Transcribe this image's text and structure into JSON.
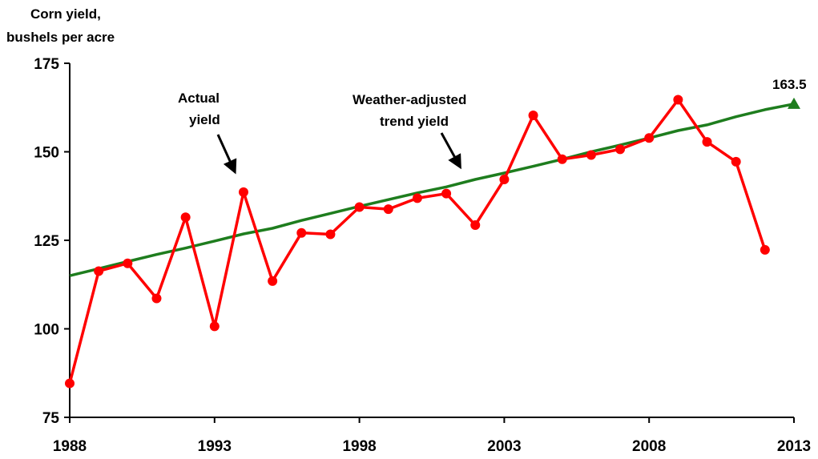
{
  "chart_data": {
    "type": "line",
    "ylabel_lines": [
      "Corn yield,",
      "bushels per acre"
    ],
    "xlabel": "",
    "ylim": [
      75,
      175
    ],
    "xlim": [
      1988,
      2013
    ],
    "yticks": [
      75,
      100,
      125,
      150,
      175
    ],
    "xticks": [
      1988,
      1993,
      1998,
      2003,
      2008,
      2013
    ],
    "grid": false,
    "series": [
      {
        "key": "actual",
        "color": "#ff0000",
        "marker": "circle",
        "x": [
          1988,
          1989,
          1990,
          1991,
          1992,
          1993,
          1994,
          1995,
          1996,
          1997,
          1998,
          1999,
          2000,
          2001,
          2002,
          2003,
          2004,
          2005,
          2006,
          2007,
          2008,
          2009,
          2010,
          2011,
          2012
        ],
        "values": [
          84.6,
          116.3,
          118.5,
          108.6,
          131.5,
          100.7,
          138.6,
          113.5,
          127.1,
          126.7,
          134.4,
          133.8,
          136.9,
          138.2,
          129.3,
          142.2,
          160.3,
          147.9,
          149.1,
          150.7,
          153.9,
          164.7,
          152.8,
          147.2,
          122.3
        ]
      },
      {
        "key": "trend",
        "color": "#1e7d1e",
        "marker": "none",
        "end_marker": "triangle",
        "x": [
          1988,
          1989,
          1990,
          1991,
          1992,
          1993,
          1994,
          1995,
          1996,
          1997,
          1998,
          1999,
          2000,
          2001,
          2002,
          2003,
          2004,
          2005,
          2006,
          2007,
          2008,
          2009,
          2010,
          2011,
          2012,
          2013
        ],
        "values": [
          115.0,
          117.0,
          119.0,
          121.0,
          122.8,
          124.8,
          126.8,
          128.4,
          130.6,
          132.6,
          134.6,
          136.5,
          138.4,
          140.1,
          142.2,
          144.0,
          145.9,
          147.9,
          150.0,
          151.9,
          153.9,
          156.0,
          157.6,
          159.9,
          161.9,
          163.5
        ]
      }
    ],
    "annotations": [
      {
        "key": "actual_label",
        "lines": [
          "Actual",
          "yield"
        ]
      },
      {
        "key": "trend_label",
        "lines": [
          "Weather-adjusted",
          "trend yield"
        ]
      },
      {
        "key": "end_value",
        "text": "163.5"
      }
    ]
  }
}
